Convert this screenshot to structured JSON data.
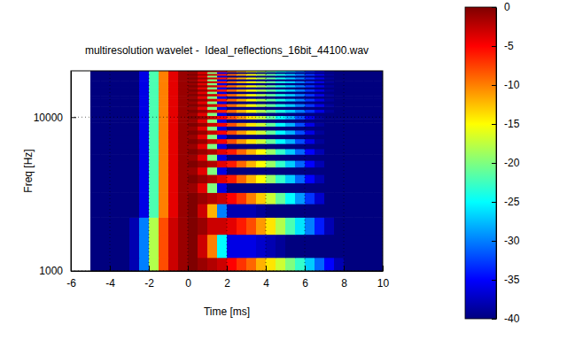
{
  "chart_data": {
    "type": "heatmap",
    "title": "multiresolution wavelet -  Ideal_reflections_16bit_44100.wav",
    "x_label": "Time [ms]",
    "y_label": "Freq [Hz]",
    "log": "y",
    "grid": true,
    "xlim": [
      -6,
      10
    ],
    "xticks": [
      -6,
      -4,
      -2,
      0,
      2,
      4,
      6,
      8,
      10
    ],
    "ylim": [
      1000,
      20000
    ],
    "yticks": [
      1000,
      10000
    ],
    "x": [
      -4.75,
      -4.25,
      -3.75,
      -3.25,
      -2.75,
      -2.25,
      -1.75,
      -1.25,
      -0.75,
      -0.25,
      0.25,
      0.75,
      1.25,
      1.75,
      2.25,
      2.75,
      3.25,
      3.75,
      4.25,
      4.75,
      5.25,
      5.75,
      6.25,
      6.75,
      7.25,
      7.75,
      8.25,
      8.75,
      9.25,
      9.75
    ],
    "y": [
      1000,
      1500,
      2000,
      2500,
      3000,
      3500,
      4000,
      4500,
      5000,
      5500,
      6000,
      6500,
      7000,
      7500,
      8000,
      8500,
      9000,
      9500,
      10000,
      10500,
      11000,
      11500,
      12000,
      12500,
      13000,
      13500,
      14000,
      14500,
      15000,
      15500,
      16000,
      16500,
      17000,
      17500,
      18000,
      18500,
      19000,
      19500,
      20000
    ],
    "cells": [
      [
        -40,
        -40,
        -40,
        -40,
        -38,
        -30,
        -18,
        -8,
        -3,
        -1,
        0,
        -1,
        -2,
        -3,
        -5,
        -7,
        -9,
        -12,
        -14,
        -17,
        -20,
        -23,
        -27,
        -31,
        -35,
        -38,
        -40,
        -40,
        -40,
        -40
      ],
      [
        -40,
        -40,
        -40,
        -40,
        -38,
        -30,
        -18,
        -8,
        -3,
        -1,
        0,
        -3,
        -10,
        -25,
        -36,
        -36,
        -36,
        -37,
        -38,
        -39,
        -40,
        -40,
        -40,
        -40,
        -40,
        -40,
        -40,
        -40,
        -40,
        -40
      ],
      [
        -40,
        -40,
        -40,
        -40,
        -38,
        -30,
        -18,
        -8,
        -3,
        -1,
        0,
        -1,
        -3,
        -3,
        -4,
        -6,
        -8,
        -11,
        -14,
        -18,
        -22,
        -26,
        -30,
        -34,
        -38,
        -40,
        -40,
        -40,
        -40,
        -40
      ],
      [
        -40,
        -40,
        -40,
        -40,
        -40,
        -36,
        -22,
        -10,
        -4,
        -1,
        0,
        -3,
        -12,
        -30,
        -38,
        -38,
        -38,
        -39,
        -40,
        -40,
        -40,
        -40,
        -40,
        -40,
        -40,
        -40,
        -40,
        -40,
        -40,
        -40
      ],
      [
        -40,
        -40,
        -40,
        -40,
        -40,
        -36,
        -22,
        -10,
        -4,
        -1,
        0,
        -1,
        -2,
        -3,
        -5,
        -7,
        -10,
        -13,
        -17,
        -21,
        -25,
        -29,
        -33,
        -37,
        -40,
        -40,
        -40,
        -40,
        -40,
        -40
      ],
      [
        -40,
        -40,
        -40,
        -40,
        -40,
        -36,
        -22,
        -10,
        -4,
        -1,
        -1,
        -4,
        -20,
        -36,
        -40,
        -40,
        -40,
        -40,
        -40,
        -40,
        -40,
        -40,
        -40,
        -40,
        -40,
        -40,
        -40,
        -40,
        -40,
        -40
      ],
      [
        -40,
        -40,
        -40,
        -40,
        -40,
        -36,
        -22,
        -10,
        -4,
        -1,
        0,
        -1,
        -2,
        -4,
        -6,
        -9,
        -12,
        -15,
        -19,
        -23,
        -27,
        -31,
        -35,
        -38,
        -40,
        -40,
        -40,
        -40,
        -40,
        -40
      ],
      [
        -40,
        -40,
        -40,
        -40,
        -40,
        -36,
        -22,
        -10,
        -4,
        -1,
        -1,
        -4,
        -20,
        -36,
        -40,
        -40,
        -40,
        -40,
        -40,
        -40,
        -40,
        -40,
        -40,
        -40,
        -40,
        -40,
        -40,
        -40,
        -40,
        -40
      ],
      [
        -40,
        -40,
        -40,
        -40,
        -40,
        -36,
        -22,
        -10,
        -4,
        -1,
        0,
        -1,
        -2,
        -4,
        -6,
        -9,
        -12,
        -15,
        -19,
        -23,
        -27,
        -31,
        -35,
        -38,
        -40,
        -40,
        -40,
        -40,
        -40,
        -40
      ],
      [
        -40,
        -40,
        -40,
        -40,
        -40,
        -36,
        -22,
        -10,
        -4,
        -1,
        -1,
        -4,
        -20,
        -36,
        -40,
        -40,
        -40,
        -40,
        -40,
        -40,
        -40,
        -40,
        -40,
        -40,
        -40,
        -40,
        -40,
        -40,
        -40,
        -40
      ],
      [
        -40,
        -40,
        -40,
        -40,
        -40,
        -36,
        -22,
        -10,
        -4,
        -1,
        0,
        -1,
        -2,
        -4,
        -6,
        -9,
        -12,
        -15,
        -19,
        -23,
        -27,
        -31,
        -35,
        -38,
        -40,
        -40,
        -40,
        -40,
        -40,
        -40
      ],
      [
        -40,
        -40,
        -40,
        -40,
        -40,
        -36,
        -22,
        -10,
        -4,
        -1,
        -1,
        -4,
        -20,
        -36,
        -40,
        -40,
        -40,
        -40,
        -40,
        -40,
        -40,
        -40,
        -40,
        -40,
        -40,
        -40,
        -40,
        -40,
        -40,
        -40
      ],
      [
        -40,
        -40,
        -40,
        -40,
        -40,
        -36,
        -22,
        -10,
        -4,
        -1,
        0,
        -1,
        -3,
        -5,
        -8,
        -11,
        -14,
        -17,
        -21,
        -25,
        -28,
        -32,
        -36,
        -39,
        -40,
        -40,
        -40,
        -40,
        -40,
        -40
      ],
      [
        -40,
        -40,
        -40,
        -40,
        -40,
        -36,
        -22,
        -10,
        -4,
        -1,
        -1,
        -4,
        -20,
        -36,
        -40,
        -40,
        -40,
        -40,
        -40,
        -40,
        -40,
        -40,
        -40,
        -40,
        -40,
        -40,
        -40,
        -40,
        -40,
        -40
      ],
      [
        -40,
        -40,
        -40,
        -40,
        -40,
        -36,
        -22,
        -10,
        -4,
        -1,
        0,
        -1,
        -3,
        -5,
        -8,
        -11,
        -14,
        -17,
        -21,
        -25,
        -28,
        -32,
        -36,
        -39,
        -40,
        -40,
        -40,
        -40,
        -40,
        -40
      ],
      [
        -40,
        -40,
        -40,
        -40,
        -40,
        -36,
        -22,
        -10,
        -4,
        -1,
        -1,
        -4,
        -20,
        -36,
        -40,
        -40,
        -40,
        -40,
        -40,
        -40,
        -40,
        -40,
        -40,
        -40,
        -40,
        -40,
        -40,
        -40,
        -40,
        -40
      ],
      [
        -40,
        -40,
        -40,
        -40,
        -40,
        -36,
        -22,
        -10,
        -4,
        -1,
        0,
        -1,
        -3,
        -5,
        -8,
        -11,
        -14,
        -17,
        -21,
        -25,
        -28,
        -32,
        -36,
        -39,
        -40,
        -40,
        -40,
        -40,
        -40,
        -40
      ],
      [
        -40,
        -40,
        -40,
        -40,
        -40,
        -36,
        -22,
        -10,
        -4,
        -1,
        -1,
        -4,
        -20,
        -36,
        -40,
        -40,
        -40,
        -40,
        -40,
        -40,
        -40,
        -40,
        -40,
        -40,
        -40,
        -40,
        -40,
        -40,
        -40,
        -40
      ],
      [
        -40,
        -40,
        -40,
        -40,
        -40,
        -36,
        -22,
        -10,
        -4,
        -1,
        0,
        -1,
        -3,
        -5,
        -8,
        -11,
        -14,
        -17,
        -21,
        -25,
        -28,
        -32,
        -36,
        -39,
        -40,
        -40,
        -40,
        -40,
        -40,
        -40
      ],
      [
        -40,
        -40,
        -40,
        -40,
        -40,
        -36,
        -22,
        -10,
        -4,
        -1,
        -1,
        -4,
        -20,
        -36,
        -40,
        -40,
        -40,
        -40,
        -40,
        -40,
        -40,
        -40,
        -40,
        -40,
        -40,
        -40,
        -40,
        -40,
        -40,
        -40
      ],
      [
        -40,
        -40,
        -40,
        -40,
        -40,
        -36,
        -22,
        -10,
        -4,
        -1,
        0,
        -1,
        -3,
        -6,
        -9,
        -12,
        -15,
        -18,
        -21,
        -24,
        -27,
        -30,
        -33,
        -36,
        -39,
        -40,
        -40,
        -40,
        -40,
        -40
      ],
      [
        -40,
        -40,
        -40,
        -40,
        -40,
        -36,
        -22,
        -10,
        -4,
        -1,
        -1,
        -4,
        -20,
        -36,
        -40,
        -40,
        -40,
        -40,
        -40,
        -40,
        -40,
        -40,
        -40,
        -40,
        -40,
        -40,
        -40,
        -40,
        -40,
        -40
      ],
      [
        -40,
        -40,
        -40,
        -40,
        -40,
        -36,
        -22,
        -10,
        -4,
        -1,
        0,
        -1,
        -3,
        -6,
        -9,
        -12,
        -15,
        -18,
        -21,
        -24,
        -27,
        -30,
        -33,
        -36,
        -39,
        -40,
        -40,
        -40,
        -40,
        -40
      ],
      [
        -40,
        -40,
        -40,
        -40,
        -40,
        -36,
        -22,
        -10,
        -4,
        -1,
        -1,
        -4,
        -20,
        -36,
        -40,
        -40,
        -40,
        -40,
        -40,
        -40,
        -40,
        -40,
        -40,
        -40,
        -40,
        -40,
        -40,
        -40,
        -40,
        -40
      ],
      [
        -40,
        -40,
        -40,
        -40,
        -40,
        -36,
        -22,
        -10,
        -4,
        -1,
        0,
        -1,
        -3,
        -6,
        -9,
        -12,
        -15,
        -18,
        -21,
        -24,
        -27,
        -30,
        -33,
        -36,
        -39,
        -40,
        -40,
        -40,
        -40,
        -40
      ],
      [
        -40,
        -40,
        -40,
        -40,
        -40,
        -36,
        -22,
        -10,
        -4,
        -1,
        -1,
        -4,
        -20,
        -36,
        -40,
        -40,
        -40,
        -40,
        -40,
        -40,
        -40,
        -40,
        -40,
        -40,
        -40,
        -40,
        -40,
        -40,
        -40,
        -40
      ],
      [
        -40,
        -40,
        -40,
        -40,
        -40,
        -36,
        -22,
        -10,
        -4,
        -1,
        0,
        -1,
        -3,
        -6,
        -9,
        -12,
        -15,
        -18,
        -21,
        -24,
        -27,
        -30,
        -33,
        -36,
        -39,
        -40,
        -40,
        -40,
        -40,
        -40
      ],
      [
        -40,
        -40,
        -40,
        -40,
        -40,
        -36,
        -22,
        -10,
        -4,
        -1,
        -1,
        -4,
        -20,
        -36,
        -40,
        -40,
        -40,
        -40,
        -40,
        -40,
        -40,
        -40,
        -40,
        -40,
        -40,
        -40,
        -40,
        -40,
        -40,
        -40
      ],
      [
        -40,
        -40,
        -40,
        -40,
        -40,
        -36,
        -22,
        -10,
        -4,
        -1,
        0,
        -1,
        -3,
        -6,
        -9,
        -12,
        -15,
        -18,
        -21,
        -24,
        -27,
        -30,
        -33,
        -36,
        -39,
        -40,
        -40,
        -40,
        -40,
        -40
      ],
      [
        -40,
        -40,
        -40,
        -40,
        -40,
        -36,
        -22,
        -10,
        -4,
        -1,
        -1,
        -4,
        -20,
        -36,
        -40,
        -40,
        -40,
        -40,
        -40,
        -40,
        -40,
        -40,
        -40,
        -40,
        -40,
        -40,
        -40,
        -40,
        -40,
        -40
      ],
      [
        -40,
        -40,
        -40,
        -40,
        -40,
        -36,
        -22,
        -10,
        -4,
        -1,
        0,
        -1,
        -3,
        -6,
        -9,
        -12,
        -15,
        -18,
        -21,
        -24,
        -27,
        -30,
        -33,
        -36,
        -39,
        -40,
        -40,
        -40,
        -40,
        -40
      ],
      [
        -40,
        -40,
        -40,
        -40,
        -40,
        -36,
        -22,
        -10,
        -4,
        -1,
        -1,
        -4,
        -20,
        -36,
        -40,
        -40,
        -40,
        -40,
        -40,
        -40,
        -40,
        -40,
        -40,
        -40,
        -40,
        -40,
        -40,
        -40,
        -40,
        -40
      ],
      [
        -40,
        -40,
        -40,
        -40,
        -40,
        -36,
        -22,
        -10,
        -4,
        -1,
        0,
        -1,
        -3,
        -6,
        -9,
        -12,
        -15,
        -18,
        -21,
        -24,
        -27,
        -30,
        -33,
        -36,
        -39,
        -40,
        -40,
        -40,
        -40,
        -40
      ],
      [
        -40,
        -40,
        -40,
        -40,
        -40,
        -36,
        -22,
        -10,
        -4,
        -1,
        -1,
        -4,
        -20,
        -36,
        -40,
        -40,
        -40,
        -40,
        -40,
        -40,
        -40,
        -40,
        -40,
        -40,
        -40,
        -40,
        -40,
        -40,
        -40,
        -40
      ],
      [
        -40,
        -40,
        -40,
        -40,
        -40,
        -36,
        -22,
        -10,
        -4,
        -1,
        0,
        -1,
        -3,
        -6,
        -9,
        -12,
        -15,
        -18,
        -21,
        -24,
        -27,
        -30,
        -33,
        -36,
        -39,
        -40,
        -40,
        -40,
        -40,
        -40
      ],
      [
        -40,
        -40,
        -40,
        -40,
        -40,
        -36,
        -22,
        -10,
        -4,
        -1,
        -1,
        -4,
        -20,
        -36,
        -40,
        -40,
        -40,
        -40,
        -40,
        -40,
        -40,
        -40,
        -40,
        -40,
        -40,
        -40,
        -40,
        -40,
        -40,
        -40
      ],
      [
        -40,
        -40,
        -40,
        -40,
        -40,
        -36,
        -22,
        -10,
        -4,
        -1,
        0,
        -1,
        -3,
        -6,
        -9,
        -12,
        -15,
        -18,
        -21,
        -24,
        -27,
        -30,
        -33,
        -36,
        -39,
        -40,
        -40,
        -40,
        -40,
        -40
      ],
      [
        -40,
        -40,
        -40,
        -40,
        -40,
        -36,
        -22,
        -10,
        -4,
        -1,
        -1,
        -4,
        -20,
        -36,
        -40,
        -40,
        -40,
        -40,
        -40,
        -40,
        -40,
        -40,
        -40,
        -40,
        -40,
        -40,
        -40,
        -40,
        -40,
        -40
      ],
      [
        -40,
        -40,
        -40,
        -40,
        -40,
        -36,
        -22,
        -10,
        -4,
        -1,
        0,
        -1,
        -3,
        -6,
        -9,
        -12,
        -15,
        -18,
        -21,
        -24,
        -27,
        -30,
        -33,
        -36,
        -39,
        -40,
        -40,
        -40,
        -40,
        -40
      ]
    ],
    "colorbar": {
      "range": [
        -40,
        0
      ],
      "ticks": [
        -40,
        -35,
        -30,
        -25,
        -20,
        -15,
        -10,
        -5,
        0
      ]
    }
  }
}
